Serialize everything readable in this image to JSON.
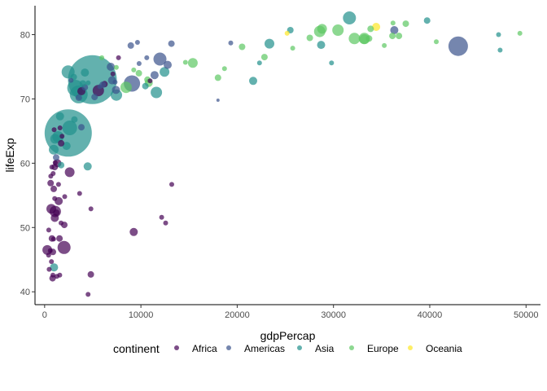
{
  "chart_data": {
    "type": "scatter",
    "xlabel": "gdpPercap",
    "ylabel": "lifeExp",
    "xlim": [
      -1000,
      51500
    ],
    "ylim": [
      38,
      84.5
    ],
    "x_ticks": [
      0,
      10000,
      20000,
      30000,
      40000,
      50000
    ],
    "x_tick_labels": [
      "0",
      "10000",
      "20000",
      "30000",
      "40000",
      "50000"
    ],
    "y_ticks": [
      40,
      50,
      60,
      70,
      80
    ],
    "y_tick_labels": [
      "40",
      "50",
      "60",
      "70",
      "80"
    ],
    "grid": false,
    "legend": {
      "title": "continent",
      "placement": "bottom",
      "entries": [
        "Africa",
        "Americas",
        "Asia",
        "Europe",
        "Oceania"
      ]
    },
    "colors": {
      "Africa": "#440154",
      "Americas": "#3B528B",
      "Asia": "#21908C",
      "Europe": "#5DC863",
      "Oceania": "#FDE725"
    },
    "size_legend_note": "point size encodes pop",
    "series": [
      {
        "name": "Africa",
        "points": [
          {
            "x": 6223,
            "y": 72.3,
            "r": 4
          },
          {
            "x": 4797,
            "y": 42.7,
            "r": 4
          },
          {
            "x": 1441,
            "y": 56.7,
            "r": 3
          },
          {
            "x": 12570,
            "y": 50.7,
            "r": 3
          },
          {
            "x": 1217,
            "y": 52.3,
            "r": 4
          },
          {
            "x": 430,
            "y": 49.6,
            "r": 3
          },
          {
            "x": 2042,
            "y": 50.4,
            "r": 4
          },
          {
            "x": 706,
            "y": 44.7,
            "r": 3
          },
          {
            "x": 1704,
            "y": 50.7,
            "r": 3
          },
          {
            "x": 986,
            "y": 65.2,
            "r": 3
          },
          {
            "x": 277,
            "y": 46.5,
            "r": 6
          },
          {
            "x": 3633,
            "y": 55.3,
            "r": 3
          },
          {
            "x": 1545,
            "y": 48.3,
            "r": 4
          },
          {
            "x": 2082,
            "y": 54.8,
            "r": 3
          },
          {
            "x": 5581,
            "y": 71.3,
            "r": 7
          },
          {
            "x": 12154,
            "y": 51.6,
            "r": 3
          },
          {
            "x": 641,
            "y": 58.0,
            "r": 3
          },
          {
            "x": 691,
            "y": 52.9,
            "r": 6
          },
          {
            "x": 13206,
            "y": 56.7,
            "r": 3
          },
          {
            "x": 753,
            "y": 59.4,
            "r": 3
          },
          {
            "x": 1327,
            "y": 60.0,
            "r": 5
          },
          {
            "x": 943,
            "y": 56.0,
            "r": 4
          },
          {
            "x": 579,
            "y": 46.4,
            "r": 3
          },
          {
            "x": 1463,
            "y": 54.1,
            "r": 5
          },
          {
            "x": 1569,
            "y": 42.6,
            "r": 3
          },
          {
            "x": 415,
            "y": 45.7,
            "r": 3
          },
          {
            "x": 9254,
            "y": 49.3,
            "r": 5
          },
          {
            "x": 1044,
            "y": 59.4,
            "r": 4
          },
          {
            "x": 759,
            "y": 48.3,
            "r": 4
          },
          {
            "x": 1042,
            "y": 54.5,
            "r": 3
          },
          {
            "x": 1803,
            "y": 64.2,
            "r": 3
          },
          {
            "x": 10957,
            "y": 72.8,
            "r": 3
          },
          {
            "x": 3820,
            "y": 71.2,
            "r": 5
          },
          {
            "x": 824,
            "y": 42.1,
            "r": 4
          },
          {
            "x": 4811,
            "y": 52.9,
            "r": 3
          },
          {
            "x": 620,
            "y": 56.9,
            "r": 4
          },
          {
            "x": 2014,
            "y": 46.9,
            "r": 8
          },
          {
            "x": 7670,
            "y": 76.4,
            "r": 3
          },
          {
            "x": 863,
            "y": 46.2,
            "r": 4
          },
          {
            "x": 1598,
            "y": 65.5,
            "r": 3
          },
          {
            "x": 1712,
            "y": 63.1,
            "r": 4
          },
          {
            "x": 862,
            "y": 42.6,
            "r": 3
          },
          {
            "x": 926,
            "y": 48.2,
            "r": 3
          },
          {
            "x": 4513,
            "y": 39.6,
            "r": 3
          },
          {
            "x": 2602,
            "y": 58.6,
            "r": 6
          },
          {
            "x": 1108,
            "y": 52.5,
            "r": 7
          },
          {
            "x": 882,
            "y": 58.4,
            "r": 3
          },
          {
            "x": 7093,
            "y": 73.9,
            "r": 3
          },
          {
            "x": 1056,
            "y": 51.5,
            "r": 5
          },
          {
            "x": 1271,
            "y": 42.4,
            "r": 3
          },
          {
            "x": 470,
            "y": 43.5,
            "r": 3
          },
          {
            "x": 1100,
            "y": 60.1,
            "r": 3
          }
        ]
      },
      {
        "name": "Americas",
        "points": [
          {
            "x": 12779,
            "y": 75.3,
            "r": 5
          },
          {
            "x": 3822,
            "y": 65.6,
            "r": 4
          },
          {
            "x": 9066,
            "y": 72.4,
            "r": 10
          },
          {
            "x": 36319,
            "y": 80.7,
            "r": 5
          },
          {
            "x": 13172,
            "y": 78.6,
            "r": 4
          },
          {
            "x": 7007,
            "y": 72.9,
            "r": 5
          },
          {
            "x": 9645,
            "y": 78.8,
            "r": 3
          },
          {
            "x": 8948,
            "y": 78.3,
            "r": 4
          },
          {
            "x": 6025,
            "y": 72.2,
            "r": 4
          },
          {
            "x": 6873,
            "y": 75.0,
            "r": 5
          },
          {
            "x": 5728,
            "y": 71.9,
            "r": 3
          },
          {
            "x": 5186,
            "y": 70.3,
            "r": 4
          },
          {
            "x": 1202,
            "y": 60.9,
            "r": 4
          },
          {
            "x": 3548,
            "y": 70.2,
            "r": 4
          },
          {
            "x": 7321,
            "y": 72.6,
            "r": 3
          },
          {
            "x": 11978,
            "y": 76.2,
            "r": 8
          },
          {
            "x": 2749,
            "y": 72.9,
            "r": 3
          },
          {
            "x": 9809,
            "y": 75.5,
            "r": 3
          },
          {
            "x": 4173,
            "y": 71.8,
            "r": 4
          },
          {
            "x": 7409,
            "y": 71.4,
            "r": 5
          },
          {
            "x": 19329,
            "y": 78.7,
            "r": 3
          },
          {
            "x": 18009,
            "y": 69.8,
            "r": 2
          },
          {
            "x": 42952,
            "y": 78.2,
            "r": 12
          },
          {
            "x": 10611,
            "y": 76.4,
            "r": 3
          },
          {
            "x": 11416,
            "y": 73.7,
            "r": 5
          }
        ]
      },
      {
        "name": "Asia",
        "points": [
          {
            "x": 975,
            "y": 43.8,
            "r": 5
          },
          {
            "x": 29796,
            "y": 75.6,
            "r": 3
          },
          {
            "x": 1391,
            "y": 64.1,
            "r": 7
          },
          {
            "x": 1714,
            "y": 59.7,
            "r": 4
          },
          {
            "x": 4959,
            "y": 73.0,
            "r": 30
          },
          {
            "x": 39725,
            "y": 82.2,
            "r": 4
          },
          {
            "x": 2452,
            "y": 64.7,
            "r": 29
          },
          {
            "x": 3541,
            "y": 70.7,
            "r": 11
          },
          {
            "x": 11606,
            "y": 71.0,
            "r": 7
          },
          {
            "x": 4471,
            "y": 59.5,
            "r": 5
          },
          {
            "x": 25523,
            "y": 80.7,
            "r": 4
          },
          {
            "x": 31656,
            "y": 82.6,
            "r": 8
          },
          {
            "x": 4519,
            "y": 72.5,
            "r": 3
          },
          {
            "x": 1593,
            "y": 67.3,
            "r": 5
          },
          {
            "x": 23348,
            "y": 78.6,
            "r": 6
          },
          {
            "x": 47307,
            "y": 77.6,
            "r": 3
          },
          {
            "x": 10461,
            "y": 72.0,
            "r": 4
          },
          {
            "x": 12452,
            "y": 74.2,
            "r": 6
          },
          {
            "x": 3096,
            "y": 66.8,
            "r": 4
          },
          {
            "x": 944,
            "y": 62.1,
            "r": 6
          },
          {
            "x": 1091,
            "y": 63.8,
            "r": 6
          },
          {
            "x": 22316,
            "y": 75.6,
            "r": 3
          },
          {
            "x": 2606,
            "y": 65.5,
            "r": 9
          },
          {
            "x": 3190,
            "y": 71.7,
            "r": 10
          },
          {
            "x": 21655,
            "y": 72.8,
            "r": 5
          },
          {
            "x": 47143,
            "y": 80.0,
            "r": 3
          },
          {
            "x": 3970,
            "y": 72.4,
            "r": 4
          },
          {
            "x": 4185,
            "y": 74.1,
            "r": 5
          },
          {
            "x": 28718,
            "y": 78.4,
            "r": 5
          },
          {
            "x": 7458,
            "y": 70.6,
            "r": 7
          },
          {
            "x": 2442,
            "y": 74.2,
            "r": 8
          },
          {
            "x": 3026,
            "y": 73.4,
            "r": 4
          },
          {
            "x": 2281,
            "y": 62.7,
            "r": 5
          }
        ]
      },
      {
        "name": "Europe",
        "points": [
          {
            "x": 5937,
            "y": 76.4,
            "r": 3
          },
          {
            "x": 36126,
            "y": 79.8,
            "r": 4
          },
          {
            "x": 33693,
            "y": 79.4,
            "r": 4
          },
          {
            "x": 7446,
            "y": 74.9,
            "r": 3
          },
          {
            "x": 10681,
            "y": 73.0,
            "r": 4
          },
          {
            "x": 14619,
            "y": 75.7,
            "r": 3
          },
          {
            "x": 22834,
            "y": 76.5,
            "r": 4
          },
          {
            "x": 35278,
            "y": 78.3,
            "r": 3
          },
          {
            "x": 33207,
            "y": 79.3,
            "r": 6
          },
          {
            "x": 30470,
            "y": 80.7,
            "r": 7
          },
          {
            "x": 32170,
            "y": 79.4,
            "r": 7
          },
          {
            "x": 27538,
            "y": 79.5,
            "r": 4
          },
          {
            "x": 18009,
            "y": 73.3,
            "r": 4
          },
          {
            "x": 36181,
            "y": 81.8,
            "r": 3
          },
          {
            "x": 40676,
            "y": 78.9,
            "r": 3
          },
          {
            "x": 28570,
            "y": 80.5,
            "r": 7
          },
          {
            "x": 9254,
            "y": 74.5,
            "r": 3
          },
          {
            "x": 36798,
            "y": 79.8,
            "r": 4
          },
          {
            "x": 49357,
            "y": 80.2,
            "r": 3
          },
          {
            "x": 15390,
            "y": 75.6,
            "r": 6
          },
          {
            "x": 20510,
            "y": 78.1,
            "r": 4
          },
          {
            "x": 10808,
            "y": 72.5,
            "r": 5
          },
          {
            "x": 9787,
            "y": 74.0,
            "r": 4
          },
          {
            "x": 18678,
            "y": 74.7,
            "r": 3
          },
          {
            "x": 25768,
            "y": 77.9,
            "r": 3
          },
          {
            "x": 28821,
            "y": 80.9,
            "r": 6
          },
          {
            "x": 33860,
            "y": 80.9,
            "r": 4
          },
          {
            "x": 37506,
            "y": 81.7,
            "r": 4
          },
          {
            "x": 8458,
            "y": 71.8,
            "r": 7
          },
          {
            "x": 33203,
            "y": 79.4,
            "r": 7
          }
        ]
      },
      {
        "name": "Oceania",
        "points": [
          {
            "x": 34435,
            "y": 81.2,
            "r": 5
          },
          {
            "x": 25185,
            "y": 80.2,
            "r": 3
          }
        ]
      }
    ]
  }
}
